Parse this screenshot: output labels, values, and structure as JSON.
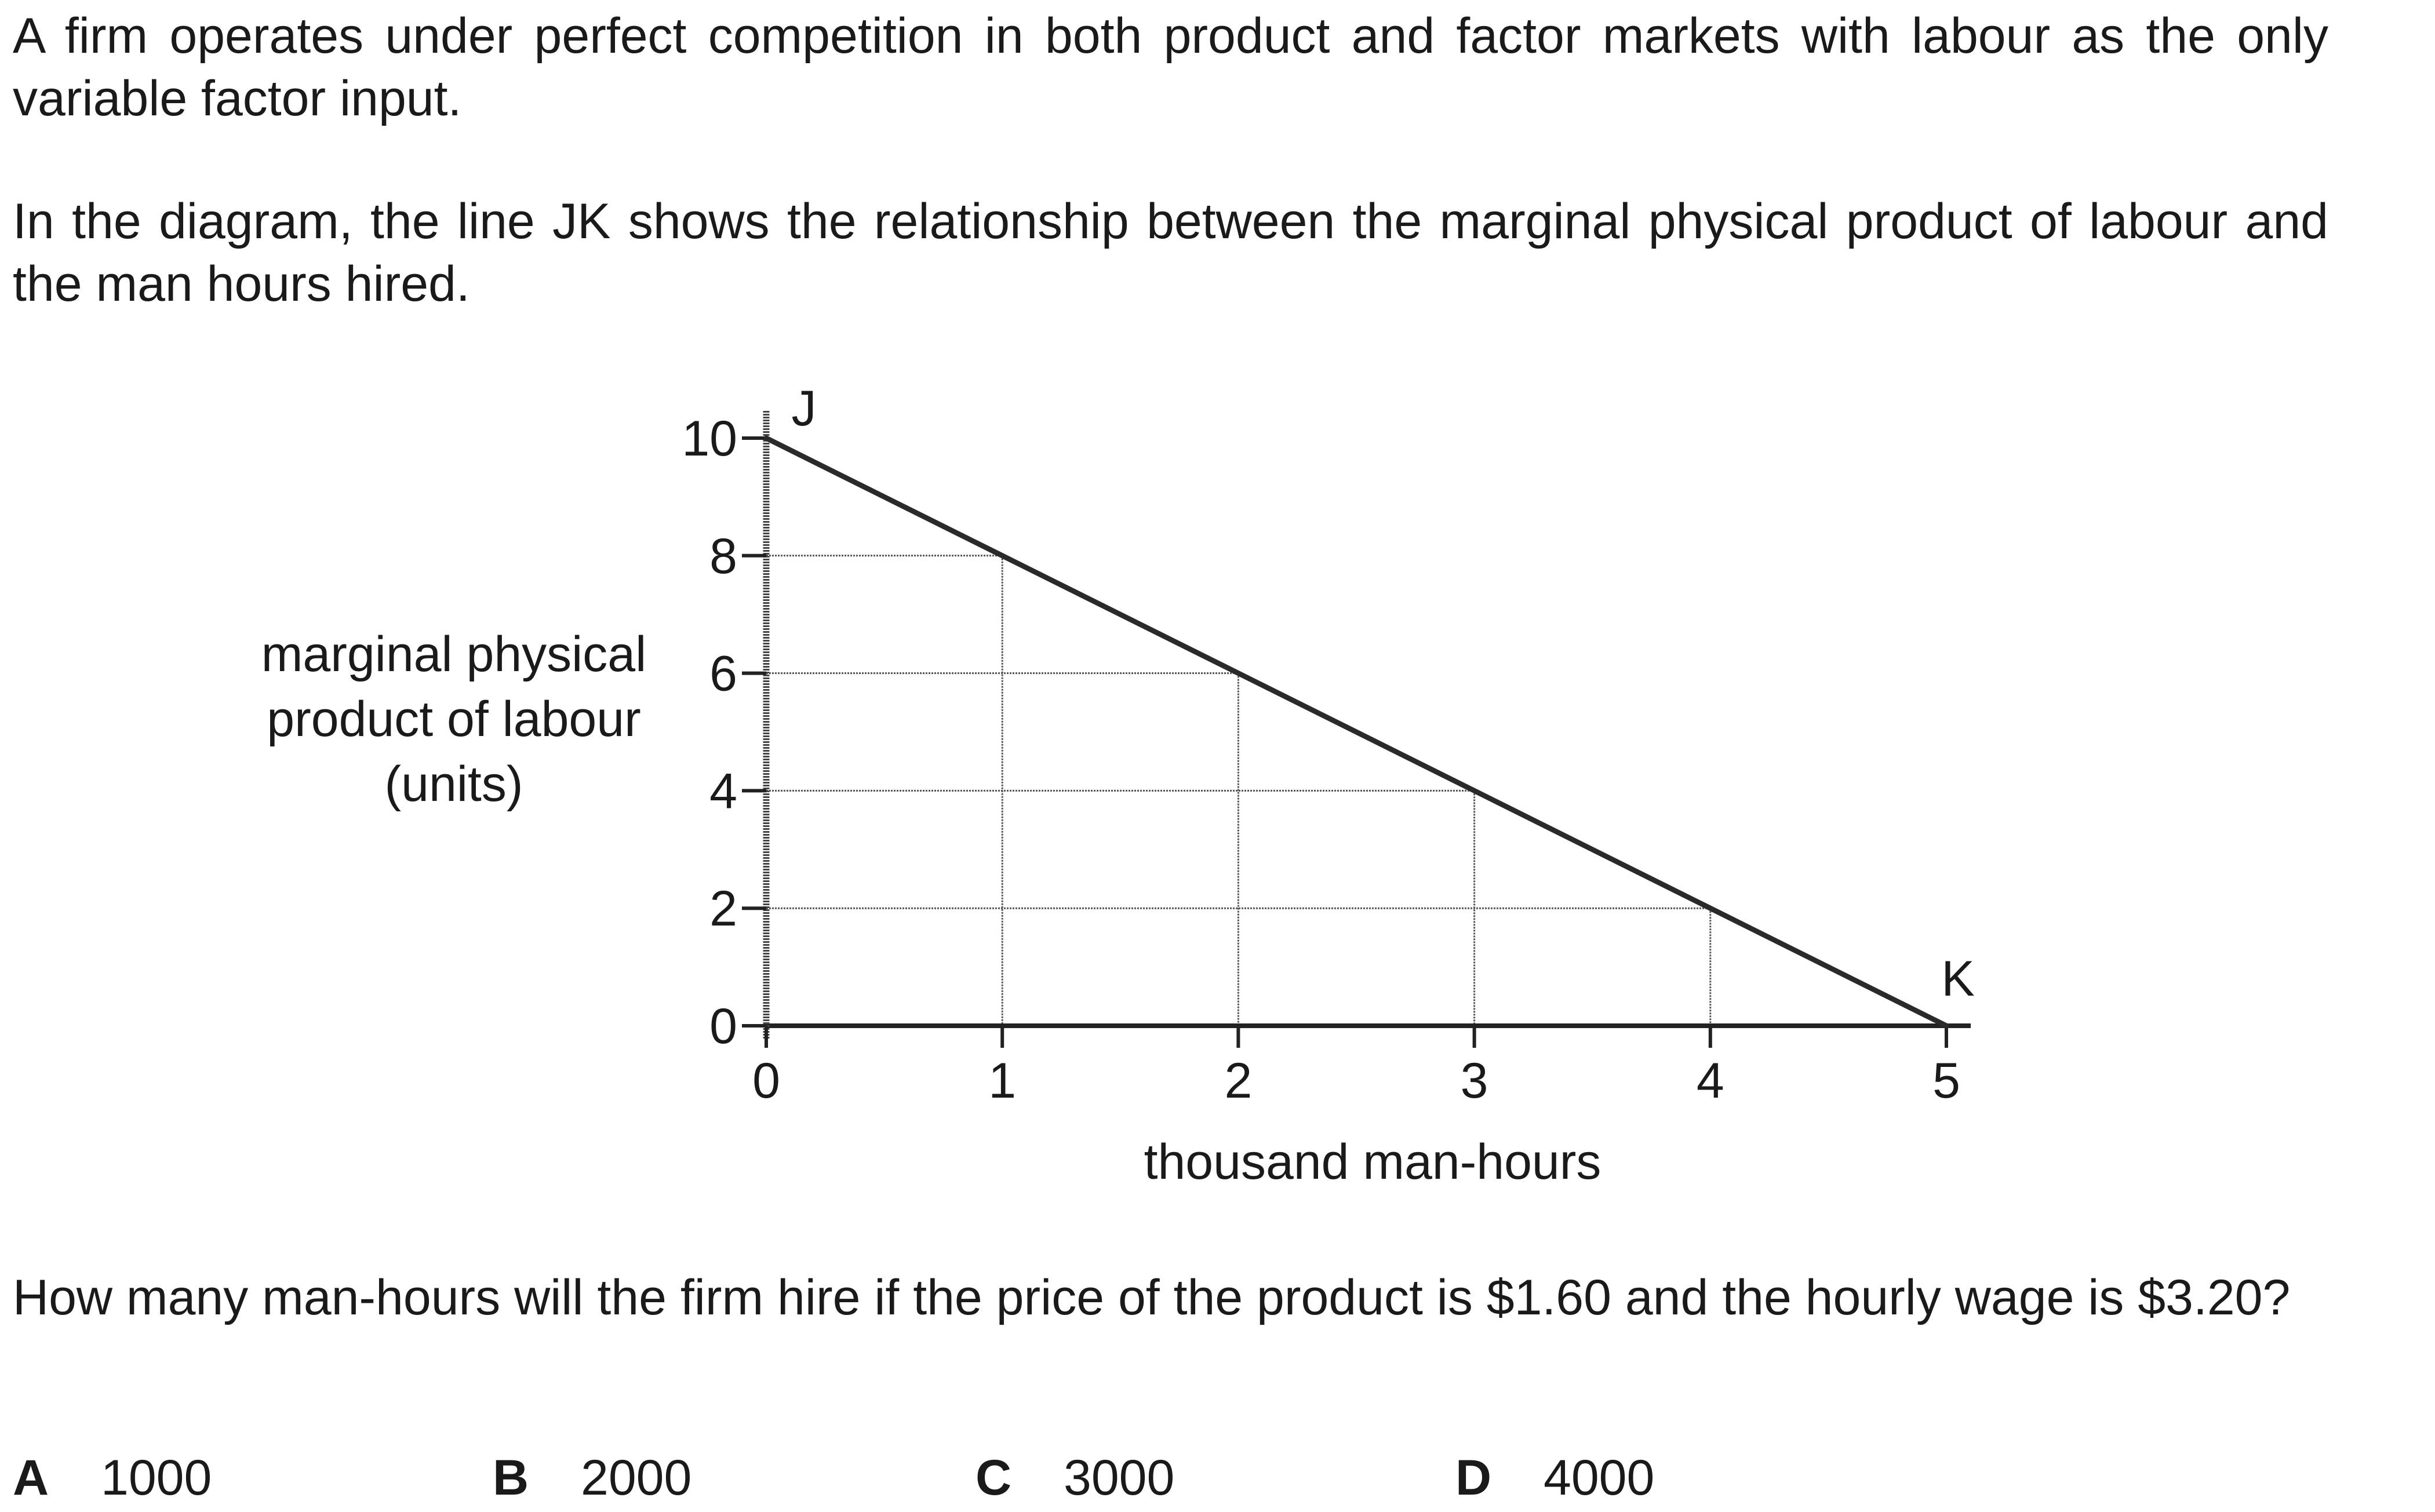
{
  "question": {
    "intro": "A firm operates under perfect competition in both product and factor markets with labour as the only variable factor input.",
    "diagram_description": "In the diagram, the line JK shows the relationship between the marginal physical product of labour and the man hours hired.",
    "prompt": "How many man-hours will the firm hire if the price of the product is $1.60 and the hourly wage is $3.20?"
  },
  "options": [
    {
      "letter": "A",
      "value": "1000"
    },
    {
      "letter": "B",
      "value": "2000"
    },
    {
      "letter": "C",
      "value": "3000"
    },
    {
      "letter": "D",
      "value": "4000"
    }
  ],
  "chart_data": {
    "type": "line",
    "title": "",
    "xlabel": "thousand man-hours",
    "ylabel_lines": [
      "marginal physical",
      "product of labour",
      "(units)"
    ],
    "xlim": [
      0,
      5
    ],
    "ylim": [
      0,
      10
    ],
    "x_ticks": [
      0,
      1,
      2,
      3,
      4,
      5
    ],
    "y_ticks": [
      0,
      2,
      4,
      6,
      8,
      10
    ],
    "series": [
      {
        "name": "JK",
        "x": [
          0,
          1,
          2,
          3,
          4,
          5
        ],
        "y": [
          10,
          8,
          6,
          4,
          2,
          0
        ],
        "color": "#2a2a2a"
      }
    ],
    "point_labels": [
      {
        "label": "J",
        "x": 0,
        "y": 10
      },
      {
        "label": "K",
        "x": 5,
        "y": 0
      }
    ],
    "guide_lines": [
      {
        "x": 1,
        "y": 8
      },
      {
        "x": 2,
        "y": 6
      },
      {
        "x": 3,
        "y": 4
      },
      {
        "x": 4,
        "y": 2
      }
    ],
    "grid": false
  }
}
